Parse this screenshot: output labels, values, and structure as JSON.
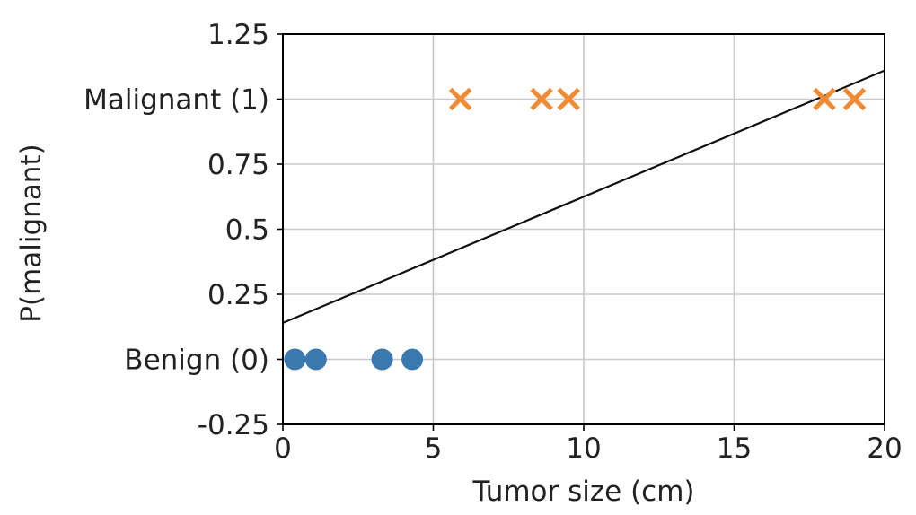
{
  "chart_data": {
    "type": "scatter",
    "title": "",
    "xlabel": "Tumor size (cm)",
    "ylabel": "P(malignant)",
    "xlim": [
      0,
      20
    ],
    "ylim": [
      -0.25,
      1.25
    ],
    "grid": true,
    "x_ticks": [
      {
        "value": 0,
        "label": "0"
      },
      {
        "value": 5,
        "label": "5"
      },
      {
        "value": 10,
        "label": "10"
      },
      {
        "value": 15,
        "label": "15"
      },
      {
        "value": 20,
        "label": "20"
      }
    ],
    "y_ticks": [
      {
        "value": 1.25,
        "label": "1.25"
      },
      {
        "value": 1.0,
        "label": "Malignant (1)"
      },
      {
        "value": 0.75,
        "label": "0.75"
      },
      {
        "value": 0.5,
        "label": "0.5"
      },
      {
        "value": 0.25,
        "label": "0.25"
      },
      {
        "value": 0.0,
        "label": "Benign (0)"
      },
      {
        "value": -0.25,
        "label": "-0.25"
      }
    ],
    "series": [
      {
        "marker": "circle",
        "color": "#3a78b0",
        "points": [
          {
            "x": 0.4,
            "y": 0
          },
          {
            "x": 1.1,
            "y": 0
          },
          {
            "x": 3.3,
            "y": 0
          },
          {
            "x": 4.3,
            "y": 0
          }
        ]
      },
      {
        "marker": "x",
        "color": "#f08a33",
        "points": [
          {
            "x": 5.9,
            "y": 1
          },
          {
            "x": 8.6,
            "y": 1
          },
          {
            "x": 9.5,
            "y": 1
          },
          {
            "x": 18.0,
            "y": 1
          },
          {
            "x": 19.0,
            "y": 1
          }
        ]
      }
    ],
    "fit_line": {
      "color": "#111111",
      "points": [
        {
          "x": 0,
          "y": 0.14
        },
        {
          "x": 20,
          "y": 1.11
        }
      ]
    }
  }
}
